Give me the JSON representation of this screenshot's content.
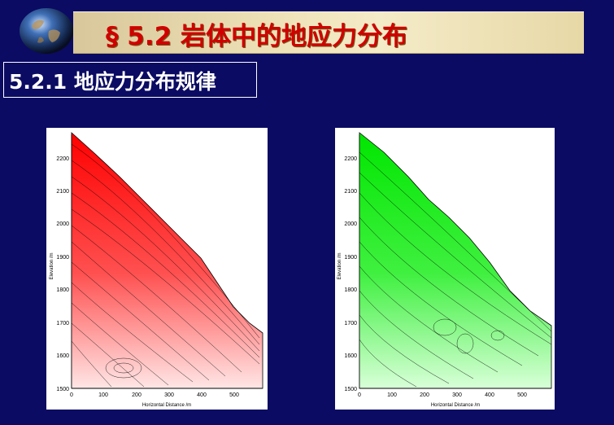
{
  "header": {
    "title": "§ 5.2 岩体中的地应力分布"
  },
  "section": {
    "title": "5.2.1 地应力分布规律"
  },
  "plots": {
    "left": {
      "ylabel": "Elevation /m",
      "xlabel": "Horizontal Distance /m",
      "yticks": [
        "2200",
        "2100",
        "2000",
        "1900",
        "1800",
        "1700",
        "1600",
        "1500"
      ],
      "xticks": [
        "0",
        "100",
        "200",
        "300",
        "400",
        "500"
      ],
      "color": "#ff1a1a"
    },
    "right": {
      "ylabel": "Elevation /m",
      "xlabel": "Horizontal Distance /m",
      "yticks": [
        "2200",
        "2100",
        "2000",
        "1900",
        "1800",
        "1700",
        "1600",
        "1500"
      ],
      "xticks": [
        "0",
        "100",
        "200",
        "300",
        "400",
        "500"
      ],
      "color": "#19e619"
    }
  }
}
